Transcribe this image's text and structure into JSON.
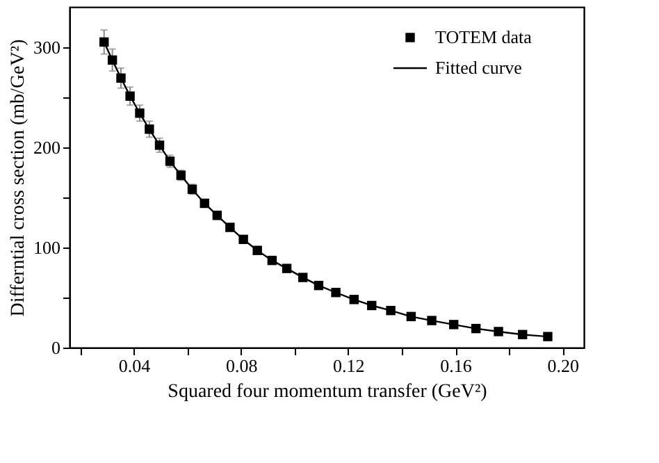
{
  "chart_data": {
    "type": "scatter",
    "xlabel": "Squared four momentum transfer (GeV²)",
    "ylabel": "Differntial cross section (mb/GeV²)",
    "series": [
      {
        "name": "TOTEM data",
        "color": "#000000",
        "marker": "square",
        "x": [
          0.0289,
          0.032,
          0.0352,
          0.0386,
          0.0422,
          0.0458,
          0.0496,
          0.0535,
          0.0576,
          0.0618,
          0.0664,
          0.0711,
          0.0759,
          0.0809,
          0.0861,
          0.0916,
          0.0971,
          0.1031,
          0.109,
          0.1154,
          0.1222,
          0.1288,
          0.1359,
          0.1435,
          0.1512,
          0.1594,
          0.1677,
          0.1761,
          0.1851,
          0.1945
        ],
        "values": [
          305,
          287,
          269,
          251,
          234,
          218,
          202,
          186,
          172,
          158,
          144,
          132,
          120,
          108,
          97,
          87,
          79,
          70,
          62,
          55,
          48,
          42,
          37,
          31,
          27,
          23,
          19,
          16,
          13,
          11
        ],
        "errors": [
          12,
          11,
          10,
          9,
          8,
          8,
          7,
          6,
          5,
          5,
          4,
          4,
          3,
          3,
          3,
          2,
          2,
          2,
          2,
          2,
          2,
          1,
          1,
          1,
          1,
          1,
          1,
          1,
          1,
          1
        ]
      },
      {
        "name": "Fitted curve",
        "type": "line",
        "color": "#000000",
        "line_style": "solid",
        "x": [
          0.0289,
          0.032,
          0.0352,
          0.0386,
          0.0422,
          0.0458,
          0.0496,
          0.0535,
          0.0576,
          0.0618,
          0.0664,
          0.0711,
          0.0759,
          0.0809,
          0.0861,
          0.0916,
          0.0971,
          0.1031,
          0.109,
          0.1154,
          0.1222,
          0.1288,
          0.1359,
          0.1435,
          0.1512,
          0.1594,
          0.1677,
          0.1761,
          0.1851,
          0.1945
        ],
        "values": [
          305,
          287,
          269,
          251,
          234,
          218,
          202,
          186,
          172,
          158,
          144,
          132,
          120,
          108,
          97,
          87,
          79,
          70,
          62,
          55,
          48,
          42,
          37,
          31,
          27,
          23,
          19,
          16,
          13,
          11
        ]
      }
    ],
    "xlim": [
      0.016,
      0.208
    ],
    "xticks": [
      {
        "value": 0.02,
        "label": null
      },
      {
        "value": 0.04,
        "label": "0.04"
      },
      {
        "value": 0.06,
        "label": null
      },
      {
        "value": 0.08,
        "label": "0.08"
      },
      {
        "value": 0.1,
        "label": null
      },
      {
        "value": 0.12,
        "label": "0.12"
      },
      {
        "value": 0.14,
        "label": null
      },
      {
        "value": 0.16,
        "label": "0.16"
      },
      {
        "value": 0.18,
        "label": null
      },
      {
        "value": 0.2,
        "label": "0.20"
      }
    ],
    "ylim": [
      0,
      340
    ],
    "yticks": [
      0,
      {
        "value": 50,
        "label": null
      },
      100,
      {
        "value": 150,
        "label": null
      },
      200,
      {
        "value": 250,
        "label": null
      },
      300
    ],
    "grid": false,
    "legend": "top right"
  }
}
